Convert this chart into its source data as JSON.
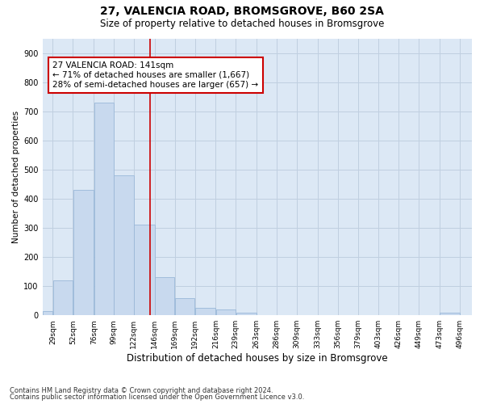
{
  "title1": "27, VALENCIA ROAD, BROMSGROVE, B60 2SA",
  "title2": "Size of property relative to detached houses in Bromsgrove",
  "xlabel": "Distribution of detached houses by size in Bromsgrove",
  "ylabel": "Number of detached properties",
  "footer1": "Contains HM Land Registry data © Crown copyright and database right 2024.",
  "footer2": "Contains public sector information licensed under the Open Government Licence v3.0.",
  "bar_color": "#c8d9ee",
  "bar_edge_color": "#9ab8d8",
  "grid_color": "#c0cfe0",
  "bg_color": "#dce8f5",
  "annotation_line1": "27 VALENCIA ROAD: 141sqm",
  "annotation_line2": "← 71% of detached houses are smaller (1,667)",
  "annotation_line3": "28% of semi-detached houses are larger (657) →",
  "annotation_box_color": "#ffffff",
  "annotation_border_color": "#cc0000",
  "vline_x": 141,
  "vline_color": "#cc0000",
  "categories": [
    "29sqm",
    "52sqm",
    "76sqm",
    "99sqm",
    "122sqm",
    "146sqm",
    "169sqm",
    "192sqm",
    "216sqm",
    "239sqm",
    "263sqm",
    "286sqm",
    "309sqm",
    "333sqm",
    "356sqm",
    "379sqm",
    "403sqm",
    "426sqm",
    "449sqm",
    "473sqm",
    "496sqm"
  ],
  "bin_left_edges": [
    17,
    29,
    52,
    76,
    99,
    122,
    146,
    169,
    192,
    216,
    239,
    263,
    286,
    309,
    333,
    356,
    379,
    403,
    426,
    449,
    473
  ],
  "bin_right_edges": [
    29,
    52,
    76,
    99,
    122,
    146,
    169,
    192,
    216,
    239,
    263,
    286,
    309,
    333,
    356,
    379,
    403,
    426,
    449,
    473,
    496
  ],
  "values": [
    15,
    120,
    430,
    730,
    480,
    310,
    130,
    60,
    25,
    20,
    8,
    0,
    0,
    0,
    0,
    0,
    0,
    0,
    0,
    0,
    8
  ],
  "ylim": [
    0,
    950
  ],
  "yticks": [
    0,
    100,
    200,
    300,
    400,
    500,
    600,
    700,
    800,
    900
  ],
  "tick_label_positions": [
    29,
    52,
    76,
    99,
    122,
    146,
    169,
    192,
    216,
    239,
    263,
    286,
    309,
    333,
    356,
    379,
    403,
    426,
    449,
    473,
    496
  ]
}
